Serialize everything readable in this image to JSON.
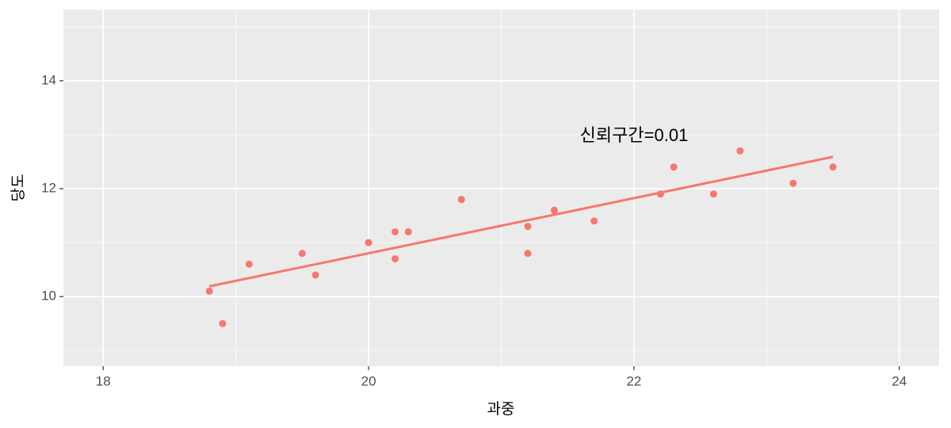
{
  "chart_data": {
    "type": "scatter",
    "x_label": "과중",
    "y_label": "당도",
    "x": [
      18.8,
      18.9,
      19.1,
      19.5,
      19.6,
      20.0,
      20.2,
      20.2,
      20.3,
      20.7,
      21.2,
      21.2,
      21.4,
      21.7,
      22.2,
      22.3,
      22.6,
      22.8,
      23.2,
      23.5
    ],
    "y": [
      10.1,
      9.5,
      10.6,
      10.8,
      10.4,
      11.0,
      11.2,
      10.7,
      11.2,
      11.8,
      11.3,
      10.8,
      11.6,
      11.4,
      11.9,
      12.4,
      11.9,
      12.7,
      12.1,
      12.4
    ],
    "color": "#f8766d",
    "fit": {
      "x": [
        18.8,
        23.5
      ],
      "y": [
        10.19,
        12.59
      ],
      "color": "#f8766d"
    },
    "annotation": "신뢰구간=0.01",
    "xlim": [
      17.7,
      24.3
    ],
    "xticks": [
      18,
      20,
      22,
      24
    ],
    "xminor": [
      19,
      21,
      23
    ],
    "ylim": [
      8.71,
      15.32
    ],
    "yticks": [
      10,
      12,
      14
    ],
    "yminor": [
      9,
      11,
      13,
      15
    ],
    "grid": true
  }
}
